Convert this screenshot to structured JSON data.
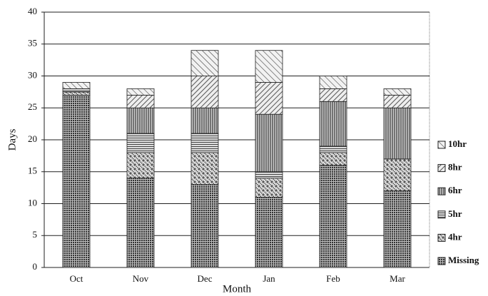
{
  "chart_data": {
    "type": "stacked-bar",
    "categories": [
      "Oct",
      "Nov",
      "Dec",
      "Jan",
      "Feb",
      "Mar"
    ],
    "x_label": "Month",
    "y_label": "Days",
    "ylim": [
      0,
      40
    ],
    "yticks": [
      0,
      5,
      10,
      15,
      20,
      25,
      30,
      35,
      40
    ],
    "grid": true,
    "legend": "right",
    "series": [
      {
        "name": "Missing",
        "color": "#333333",
        "values": [
          27,
          14,
          13,
          11,
          16,
          12
        ]
      },
      {
        "name": "4hr",
        "color": "#555555",
        "values": [
          0.5,
          4,
          5,
          3,
          2,
          5
        ]
      },
      {
        "name": "5hr",
        "color": "#444444",
        "values": [
          0.5,
          3,
          3,
          1,
          1,
          0
        ]
      },
      {
        "name": "6hr",
        "color": "#3a3a3a",
        "values": [
          0,
          4,
          4,
          9,
          7,
          8
        ]
      },
      {
        "name": "8hr",
        "color": "#444444",
        "values": [
          0,
          2,
          5,
          5,
          2,
          2
        ]
      },
      {
        "name": "10hr",
        "color": "#444444",
        "values": [
          1,
          1,
          4,
          5,
          2,
          1
        ]
      }
    ]
  }
}
